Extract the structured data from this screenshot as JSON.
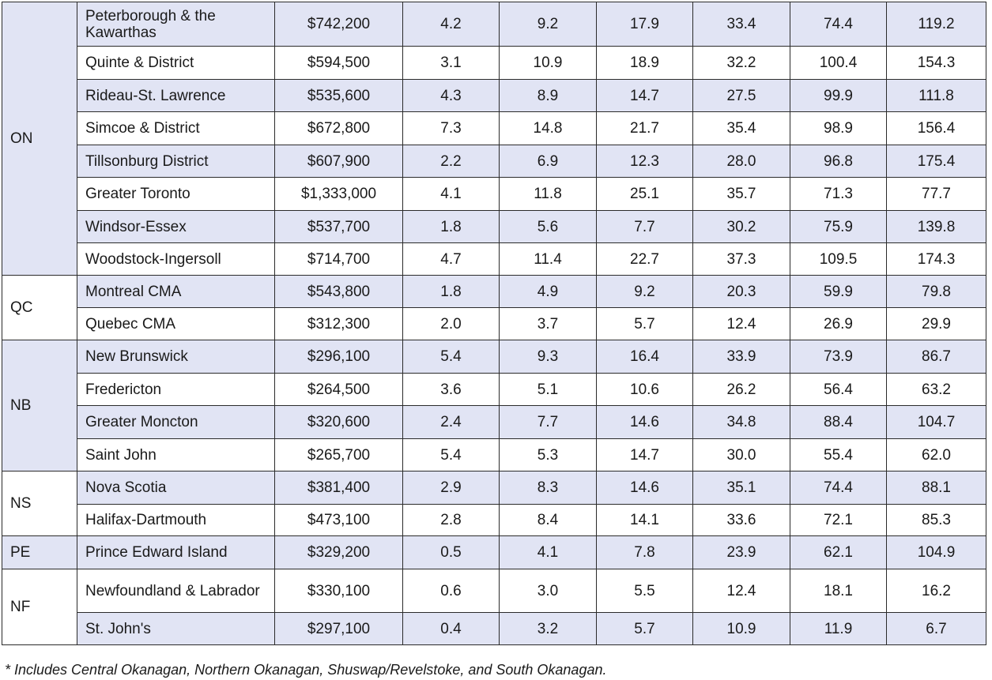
{
  "groups": [
    {
      "province": "ON",
      "rows": [
        {
          "name": "Peterborough & the Kawarthas",
          "price": "$742,200",
          "c1": "4.2",
          "c2": "9.2",
          "c3": "17.9",
          "c4": "33.4",
          "c5": "74.4",
          "c6": "119.2"
        },
        {
          "name": "Quinte & District",
          "price": "$594,500",
          "c1": "3.1",
          "c2": "10.9",
          "c3": "18.9",
          "c4": "32.2",
          "c5": "100.4",
          "c6": "154.3"
        },
        {
          "name": "Rideau-St. Lawrence",
          "price": "$535,600",
          "c1": "4.3",
          "c2": "8.9",
          "c3": "14.7",
          "c4": "27.5",
          "c5": "99.9",
          "c6": "111.8"
        },
        {
          "name": "Simcoe & District",
          "price": "$672,800",
          "c1": "7.3",
          "c2": "14.8",
          "c3": "21.7",
          "c4": "35.4",
          "c5": "98.9",
          "c6": "156.4"
        },
        {
          "name": "Tillsonburg District",
          "price": "$607,900",
          "c1": "2.2",
          "c2": "6.9",
          "c3": "12.3",
          "c4": "28.0",
          "c5": "96.8",
          "c6": "175.4"
        },
        {
          "name": "Greater Toronto",
          "price": "$1,333,000",
          "c1": "4.1",
          "c2": "11.8",
          "c3": "25.1",
          "c4": "35.7",
          "c5": "71.3",
          "c6": "77.7"
        },
        {
          "name": "Windsor-Essex",
          "price": "$537,700",
          "c1": "1.8",
          "c2": "5.6",
          "c3": "7.7",
          "c4": "30.2",
          "c5": "75.9",
          "c6": "139.8"
        },
        {
          "name": "Woodstock-Ingersoll",
          "price": "$714,700",
          "c1": "4.7",
          "c2": "11.4",
          "c3": "22.7",
          "c4": "37.3",
          "c5": "109.5",
          "c6": "174.3"
        }
      ]
    },
    {
      "province": "QC",
      "rows": [
        {
          "name": "Montreal CMA",
          "price": "$543,800",
          "c1": "1.8",
          "c2": "4.9",
          "c3": "9.2",
          "c4": "20.3",
          "c5": "59.9",
          "c6": "79.8"
        },
        {
          "name": "Quebec CMA",
          "price": "$312,300",
          "c1": "2.0",
          "c2": "3.7",
          "c3": "5.7",
          "c4": "12.4",
          "c5": "26.9",
          "c6": "29.9"
        }
      ]
    },
    {
      "province": "NB",
      "rows": [
        {
          "name": "New Brunswick",
          "price": "$296,100",
          "c1": "5.4",
          "c2": "9.3",
          "c3": "16.4",
          "c4": "33.9",
          "c5": "73.9",
          "c6": "86.7"
        },
        {
          "name": "Fredericton",
          "price": "$264,500",
          "c1": "3.6",
          "c2": "5.1",
          "c3": "10.6",
          "c4": "26.2",
          "c5": "56.4",
          "c6": "63.2"
        },
        {
          "name": "Greater Moncton",
          "price": "$320,600",
          "c1": "2.4",
          "c2": "7.7",
          "c3": "14.6",
          "c4": "34.8",
          "c5": "88.4",
          "c6": "104.7"
        },
        {
          "name": "Saint John",
          "price": "$265,700",
          "c1": "5.4",
          "c2": "5.3",
          "c3": "14.7",
          "c4": "30.0",
          "c5": "55.4",
          "c6": "62.0"
        }
      ]
    },
    {
      "province": "NS",
      "rows": [
        {
          "name": "Nova Scotia",
          "price": "$381,400",
          "c1": "2.9",
          "c2": "8.3",
          "c3": "14.6",
          "c4": "35.1",
          "c5": "74.4",
          "c6": "88.1"
        },
        {
          "name": "Halifax-Dartmouth",
          "price": "$473,100",
          "c1": "2.8",
          "c2": "8.4",
          "c3": "14.1",
          "c4": "33.6",
          "c5": "72.1",
          "c6": "85.3"
        }
      ]
    },
    {
      "province": "PE",
      "rows": [
        {
          "name": "Prince Edward Island",
          "price": "$329,200",
          "c1": "0.5",
          "c2": "4.1",
          "c3": "7.8",
          "c4": "23.9",
          "c5": "62.1",
          "c6": "104.9"
        }
      ]
    },
    {
      "province": "NF",
      "rows": [
        {
          "name": "Newfoundland & Labrador",
          "price": "$330,100",
          "c1": "0.6",
          "c2": "3.0",
          "c3": "5.5",
          "c4": "12.4",
          "c5": "18.1",
          "c6": "16.2"
        },
        {
          "name": "St. John's",
          "price": "$297,100",
          "c1": "0.4",
          "c2": "3.2",
          "c3": "5.7",
          "c4": "10.9",
          "c5": "11.9",
          "c6": "6.7"
        }
      ]
    }
  ],
  "footnote": "* Includes Central Okanagan, Northern Okanagan, Shuswap/Revelstoke, and South Okanagan.",
  "colors": {
    "band": "#e1e4f4",
    "plain": "#ffffff",
    "border": "#2b2b2b",
    "text": "#1a1a1a"
  }
}
